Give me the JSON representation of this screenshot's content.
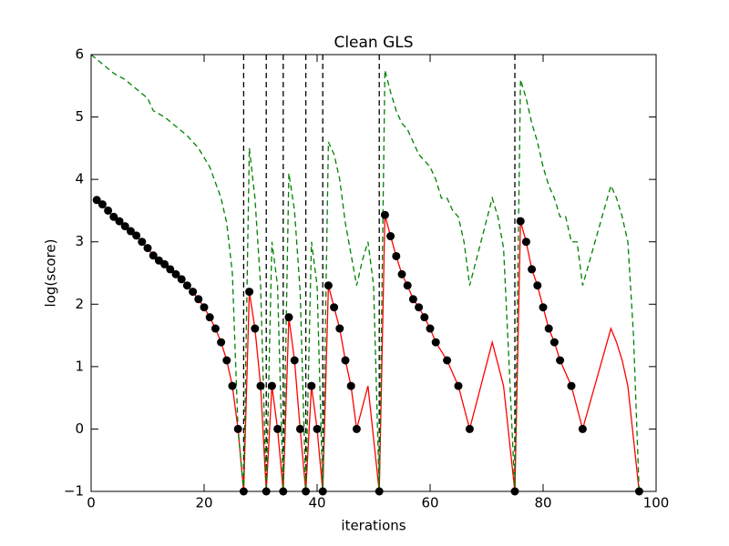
{
  "chart_data": {
    "type": "line",
    "title": "Clean GLS",
    "x_label": "iterations",
    "y_label": "log(score)",
    "xlim": [
      0,
      100
    ],
    "ylim": [
      -1,
      6
    ],
    "xticks": [
      0,
      20,
      40,
      60,
      80,
      100
    ],
    "yticks": [
      {
        "value": -1,
        "label": "−1"
      },
      0,
      1,
      2,
      3,
      4,
      5,
      6
    ],
    "series": [
      {
        "style": "line",
        "color": "#ff0000",
        "x": [
          1,
          2,
          3,
          4,
          5,
          6,
          7,
          8,
          9,
          10,
          11,
          12,
          13,
          14,
          15,
          16,
          17,
          18,
          19,
          20,
          21,
          22,
          23,
          24,
          25,
          26,
          27,
          28,
          29,
          30,
          31,
          32,
          33,
          34,
          35,
          36,
          37,
          38,
          39,
          40,
          41,
          42,
          43,
          44,
          45,
          46,
          47,
          49,
          51,
          52,
          53,
          54,
          55,
          56,
          57,
          58,
          59,
          60,
          61,
          63,
          65,
          67,
          71,
          73,
          75,
          76,
          77,
          78,
          79,
          80,
          81,
          82,
          83,
          85,
          87,
          92,
          93,
          94,
          95,
          97
        ],
        "values": [
          3.67,
          3.6,
          3.5,
          3.4,
          3.33,
          3.25,
          3.17,
          3.1,
          3.0,
          2.9,
          2.78,
          2.7,
          2.64,
          2.56,
          2.48,
          2.4,
          2.3,
          2.2,
          2.08,
          1.95,
          1.79,
          1.61,
          1.39,
          1.1,
          0.69,
          0,
          -1,
          2.2,
          1.61,
          0.69,
          -1,
          0.69,
          0,
          -1,
          1.79,
          1.1,
          0,
          -1,
          0.69,
          0,
          -1,
          2.3,
          1.95,
          1.61,
          1.1,
          0.69,
          0,
          0.69,
          -1,
          3.43,
          3.09,
          2.77,
          2.48,
          2.3,
          2.08,
          1.95,
          1.79,
          1.61,
          1.39,
          1.1,
          0.69,
          0,
          1.39,
          0.69,
          -1,
          3.33,
          3.0,
          2.56,
          2.3,
          1.95,
          1.61,
          1.39,
          1.1,
          0.69,
          0,
          1.61,
          1.39,
          1.1,
          0.69,
          -1
        ]
      },
      {
        "style": "marker",
        "color": "#000000",
        "x": [
          1,
          2,
          3,
          4,
          5,
          6,
          7,
          8,
          9,
          10,
          11,
          12,
          13,
          14,
          15,
          16,
          17,
          18,
          19,
          20,
          21,
          22,
          23,
          24,
          25,
          26,
          27,
          28,
          29,
          30,
          31,
          32,
          33,
          34,
          35,
          36,
          37,
          38,
          39,
          40,
          41,
          42,
          43,
          44,
          45,
          46,
          47,
          51,
          52,
          53,
          54,
          55,
          56,
          57,
          58,
          59,
          60,
          61,
          63,
          65,
          67,
          75,
          76,
          77,
          78,
          79,
          80,
          81,
          82,
          83,
          85,
          87,
          97
        ],
        "values": [
          3.67,
          3.6,
          3.5,
          3.4,
          3.33,
          3.25,
          3.17,
          3.1,
          3.0,
          2.9,
          2.78,
          2.7,
          2.64,
          2.56,
          2.48,
          2.4,
          2.3,
          2.2,
          2.08,
          1.95,
          1.79,
          1.61,
          1.39,
          1.1,
          0.69,
          0,
          -1,
          2.2,
          1.61,
          0.69,
          -1,
          0.69,
          0,
          -1,
          1.79,
          1.1,
          0,
          -1,
          0.69,
          0,
          -1,
          2.3,
          1.95,
          1.61,
          1.1,
          0.69,
          0,
          -1,
          3.43,
          3.09,
          2.77,
          2.48,
          2.3,
          2.08,
          1.95,
          1.79,
          1.61,
          1.39,
          1.1,
          0.69,
          0,
          -1,
          3.33,
          3.0,
          2.56,
          2.3,
          1.95,
          1.61,
          1.39,
          1.1,
          0.69,
          0,
          -1
        ]
      },
      {
        "style": "dashed",
        "color": "#008000",
        "x": [
          0,
          2,
          4,
          6,
          8,
          10,
          11,
          13,
          15,
          17,
          19,
          21,
          23,
          24,
          25,
          26,
          27,
          28,
          29,
          30,
          31,
          32,
          33,
          34,
          35,
          36,
          37,
          38,
          39,
          40,
          41,
          42,
          43,
          44,
          45,
          46,
          47,
          48,
          49,
          50,
          51,
          52,
          53,
          54,
          55,
          56,
          57,
          58,
          59,
          60,
          61,
          62,
          63,
          64,
          65,
          66,
          67,
          69,
          71,
          72,
          73,
          74,
          75,
          76,
          77,
          78,
          79,
          80,
          81,
          82,
          83,
          84,
          85,
          86,
          87,
          92,
          93,
          94,
          95,
          96,
          97
        ],
        "values": [
          6.0,
          5.85,
          5.7,
          5.6,
          5.45,
          5.3,
          5.1,
          5.0,
          4.85,
          4.7,
          4.5,
          4.2,
          3.7,
          3.3,
          2.5,
          0.0,
          -1,
          4.5,
          3.7,
          2.3,
          -1,
          3.0,
          2.3,
          -1,
          4.1,
          3.5,
          2.2,
          -1,
          3.0,
          2.3,
          -1,
          4.6,
          4.4,
          4.0,
          3.3,
          2.8,
          2.3,
          2.7,
          3.0,
          2.3,
          -1,
          5.75,
          5.4,
          5.1,
          4.9,
          4.8,
          4.6,
          4.4,
          4.3,
          4.2,
          4.0,
          3.7,
          3.7,
          3.5,
          3.4,
          3.0,
          2.3,
          3.0,
          3.7,
          3.4,
          2.9,
          1.0,
          -1,
          5.6,
          5.3,
          4.9,
          4.6,
          4.2,
          3.9,
          3.7,
          3.4,
          3.4,
          3.0,
          3.0,
          2.3,
          3.9,
          3.7,
          3.4,
          3.0,
          1.5,
          -1
        ]
      }
    ],
    "vlines": {
      "color": "#000000",
      "x": [
        27,
        31,
        34,
        38,
        41,
        51,
        75
      ]
    }
  }
}
